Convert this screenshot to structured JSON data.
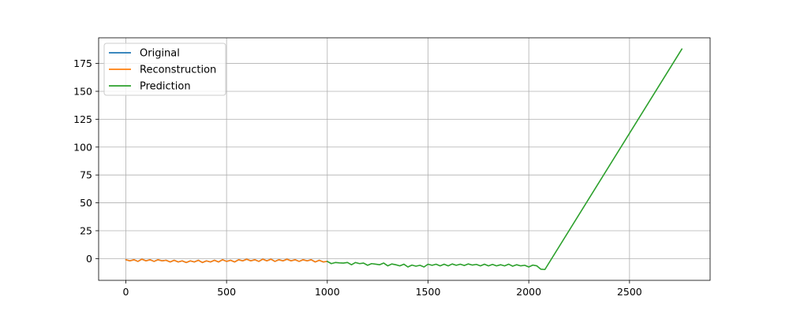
{
  "chart_data": {
    "type": "line",
    "title": "",
    "xlabel": "",
    "ylabel": "",
    "xlim": [
      -135,
      2900
    ],
    "ylim": [
      -19.5,
      198
    ],
    "xticks": [
      0,
      500,
      1000,
      1500,
      2000,
      2500
    ],
    "xtick_labels": [
      "0",
      "500",
      "1000",
      "1500",
      "2000",
      "2500"
    ],
    "yticks": [
      0,
      25,
      50,
      75,
      100,
      125,
      150,
      175
    ],
    "ytick_labels": [
      "0",
      "25",
      "50",
      "75",
      "100",
      "125",
      "150",
      "175"
    ],
    "grid": true,
    "legend_position": "upper-left",
    "series": [
      {
        "name": "Original",
        "color": "#1f77b4",
        "x": [
          0,
          20,
          40,
          60,
          80,
          100,
          120,
          140,
          160,
          180,
          200,
          220,
          240,
          260,
          280,
          300,
          320,
          340,
          360,
          380,
          400,
          420,
          440,
          460,
          480,
          500,
          520,
          540,
          560,
          580,
          600,
          620,
          640,
          660,
          680,
          700,
          720,
          740,
          760,
          780,
          800,
          820,
          840,
          860,
          880,
          900,
          920,
          940,
          960,
          980,
          1000
        ],
        "y": [
          -1,
          -2,
          -1,
          -2.5,
          -0.5,
          -2,
          -1,
          -2.5,
          -1,
          -2,
          -1.5,
          -3,
          -1.5,
          -3,
          -2,
          -3.5,
          -2,
          -3,
          -1.5,
          -3.5,
          -2,
          -3,
          -1.5,
          -3,
          -1,
          -2.5,
          -1.5,
          -3,
          -1,
          -2,
          -0.5,
          -2,
          -1,
          -2.5,
          -0.5,
          -2,
          -0.5,
          -2.5,
          -1,
          -2,
          -0.5,
          -2,
          -1,
          -2.5,
          -1,
          -2,
          -1,
          -3,
          -1.5,
          -3,
          -2.5
        ]
      },
      {
        "name": "Reconstruction",
        "color": "#ff7f0e",
        "x": [
          0,
          20,
          40,
          60,
          80,
          100,
          120,
          140,
          160,
          180,
          200,
          220,
          240,
          260,
          280,
          300,
          320,
          340,
          360,
          380,
          400,
          420,
          440,
          460,
          480,
          500,
          520,
          540,
          560,
          580,
          600,
          620,
          640,
          660,
          680,
          700,
          720,
          740,
          760,
          780,
          800,
          820,
          840,
          860,
          880,
          900,
          920,
          940,
          960,
          980,
          1000
        ],
        "y": [
          -1,
          -2,
          -1,
          -2.5,
          -0.5,
          -2,
          -1,
          -2.5,
          -1,
          -2,
          -1.5,
          -3,
          -1.5,
          -3,
          -2,
          -3.5,
          -2,
          -3,
          -1.5,
          -3.5,
          -2,
          -3,
          -1.5,
          -3,
          -1,
          -2.5,
          -1.5,
          -3,
          -1,
          -2,
          -0.5,
          -2,
          -1,
          -2.5,
          -0.5,
          -2,
          -0.5,
          -2.5,
          -1,
          -2,
          -0.5,
          -2,
          -1,
          -2.5,
          -1,
          -2,
          -1,
          -3,
          -1.5,
          -3,
          -2.5
        ]
      },
      {
        "name": "Prediction",
        "color": "#2ca02c",
        "x": [
          1000,
          1020,
          1040,
          1060,
          1080,
          1100,
          1120,
          1140,
          1160,
          1180,
          1200,
          1220,
          1240,
          1260,
          1280,
          1300,
          1320,
          1340,
          1360,
          1380,
          1400,
          1420,
          1440,
          1460,
          1480,
          1500,
          1520,
          1540,
          1560,
          1580,
          1600,
          1620,
          1640,
          1660,
          1680,
          1700,
          1720,
          1740,
          1760,
          1780,
          1800,
          1820,
          1840,
          1860,
          1880,
          1900,
          1920,
          1940,
          1960,
          1980,
          2000,
          2020,
          2040,
          2060,
          2080,
          2760
        ],
        "y": [
          -2.5,
          -4.5,
          -3.5,
          -3.8,
          -4,
          -3.5,
          -5.5,
          -3.5,
          -4.5,
          -4,
          -6,
          -4.5,
          -5,
          -5.5,
          -4,
          -6.5,
          -4.8,
          -5.5,
          -6.5,
          -5,
          -7.5,
          -5.8,
          -6.8,
          -6,
          -7.5,
          -5,
          -6,
          -5,
          -6.5,
          -5,
          -6.5,
          -4.8,
          -6,
          -5,
          -6.2,
          -4.8,
          -5.8,
          -5.2,
          -6.5,
          -5,
          -6.5,
          -5.2,
          -6.5,
          -5.5,
          -6.5,
          -5,
          -6.8,
          -5.5,
          -6.5,
          -6,
          -7.5,
          -5.8,
          -6.5,
          -9.5,
          -9.8,
          188
        ]
      }
    ]
  }
}
